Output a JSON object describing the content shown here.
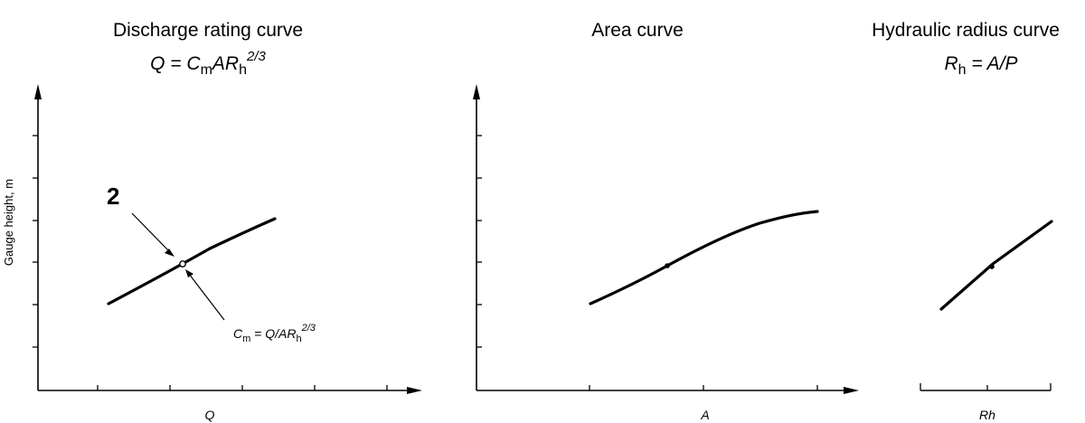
{
  "panels": {
    "discharge": {
      "title": "Discharge rating curve",
      "formula": {
        "lhs": "Q",
        "eq": " = C",
        "sub1": "m",
        "mid": "AR",
        "sub2": "h",
        "sup": "2/3"
      },
      "xlabel": "Q",
      "ylabel": "Gauge height, m"
    },
    "area": {
      "title": "Area curve",
      "xlabel": "A"
    },
    "hydraulic": {
      "title": "Hydraulic radius curve",
      "formula": {
        "lhs": "R",
        "sub": "h",
        "rhs": " = A/P"
      },
      "xlabel": "Rh"
    }
  },
  "annotations": {
    "callout_number": "2",
    "cm_formula": {
      "lhs": "C",
      "sub1": "m",
      "mid": " = Q/AR",
      "sub2": "h",
      "sup": "2/3"
    }
  },
  "chart_data": [
    {
      "type": "line",
      "title": "Discharge rating curve",
      "xlabel": "Q",
      "ylabel": "Gauge height, m",
      "series": [
        {
          "x": [
            0.1,
            0.2,
            0.3
          ],
          "y": [
            0.3,
            0.45,
            0.6
          ]
        }
      ],
      "marked_point": {
        "x": 0.2,
        "y": 0.45
      }
    },
    {
      "type": "line",
      "title": "Area curve",
      "xlabel": "A",
      "series": [
        {
          "x": [
            0.1,
            0.2,
            0.3
          ],
          "y": [
            0.3,
            0.45,
            0.6
          ]
        }
      ],
      "marked_point": {
        "x": 0.2,
        "y": 0.45
      }
    },
    {
      "type": "line",
      "title": "Hydraulic radius curve",
      "xlabel": "Rh",
      "series": [
        {
          "x": [
            0.1,
            0.2,
            0.3
          ],
          "y": [
            0.3,
            0.45,
            0.6
          ]
        }
      ],
      "marked_point": {
        "x": 0.2,
        "y": 0.45
      }
    }
  ]
}
